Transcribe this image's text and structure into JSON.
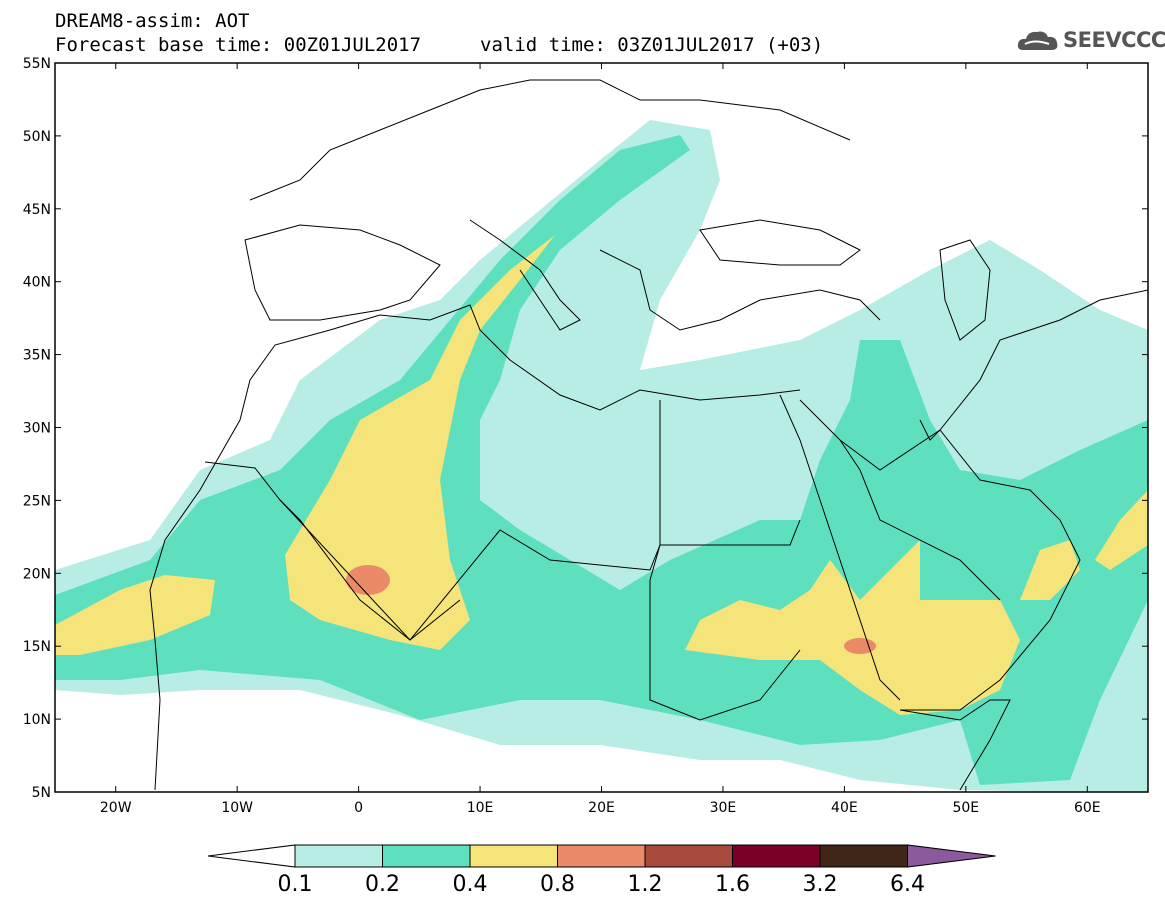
{
  "header": {
    "title_line1": "DREAM8-assim: AOT",
    "title_line2": "Forecast base time: 00Z01JUL2017",
    "valid_time": "valid time: 03Z01JUL2017 (+03)",
    "logo_text": "SEEVCCC"
  },
  "map": {
    "variable": "AOT",
    "region": "North Africa, Mediterranean, Middle East",
    "lat_range": [
      5,
      55
    ],
    "lon_range": [
      -25,
      65
    ],
    "lat_labels": [
      "55N",
      "50N",
      "45N",
      "40N",
      "35N",
      "30N",
      "25N",
      "20N",
      "15N",
      "10N",
      "5N"
    ],
    "lon_labels": [
      "20W",
      "10W",
      "0",
      "10E",
      "20E",
      "30E",
      "40E",
      "50E",
      "60E"
    ]
  },
  "colorbar": {
    "levels": [
      "0.1",
      "0.2",
      "0.4",
      "0.8",
      "1.2",
      "1.6",
      "3.2",
      "6.4"
    ],
    "colors": [
      "#ffffff",
      "#b8ede5",
      "#5ee0bf",
      "#f5e47a",
      "#eb8a68",
      "#a84a3e",
      "#7a0028",
      "#3f2616",
      "#8b5a9e"
    ]
  },
  "colors": {
    "shade_low": "#b8ede5",
    "shade_mid": "#5ee0bf",
    "shade_high": "#f5e47a",
    "shade_peak": "#eb8a68"
  }
}
